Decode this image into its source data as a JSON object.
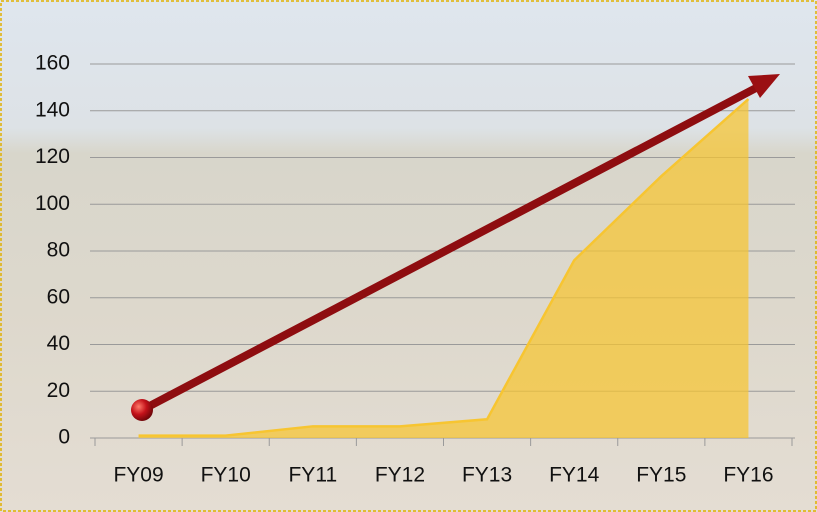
{
  "chart_data": {
    "type": "area",
    "categories": [
      "FY09",
      "FY10",
      "FY11",
      "FY12",
      "FY13",
      "FY14",
      "FY15",
      "FY16"
    ],
    "values": [
      1,
      1,
      5,
      5,
      8,
      76,
      112,
      145
    ],
    "color": "#f7c531",
    "ylim": [
      0,
      160
    ],
    "yticks": [
      0,
      20,
      40,
      60,
      80,
      100,
      120,
      140,
      160
    ],
    "grid": true
  }
}
